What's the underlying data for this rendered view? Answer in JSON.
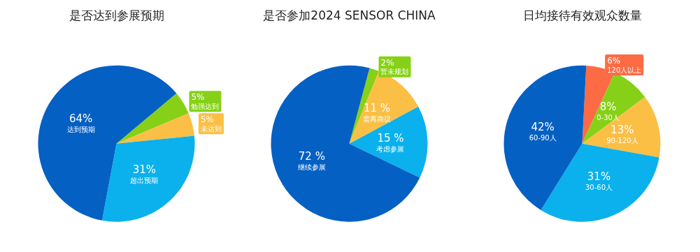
{
  "chart_data": [
    {
      "type": "pie",
      "title": "是否达到参展预期",
      "categories": [
        "勉强达到",
        "未达到",
        "超出预期",
        "达到预期"
      ],
      "values": [
        5,
        5,
        31,
        64
      ],
      "colors": [
        "#86d117",
        "#fbbf45",
        "#0ab1ec",
        "#0560c4"
      ],
      "value_labels": [
        "5%",
        "5%",
        "31%",
        "64%"
      ],
      "legend": false
    },
    {
      "type": "pie",
      "title": "是否参加2024 SENSOR CHINA",
      "categories": [
        "暂未规划",
        "需再商议",
        "考虑参展",
        "继续参展"
      ],
      "values": [
        2,
        11,
        15,
        72
      ],
      "colors": [
        "#86d117",
        "#fbbf45",
        "#0ab1ec",
        "#0560c4"
      ],
      "value_labels": [
        "2%",
        "11 %",
        "15 %",
        "72 %"
      ],
      "legend": false
    },
    {
      "type": "pie",
      "title": "日均接待有效观众数量",
      "categories": [
        "120人以上",
        "0-30人",
        "90-120人",
        "30-60人",
        "60-90人"
      ],
      "values": [
        6,
        8,
        13,
        31,
        42
      ],
      "colors": [
        "#fd6b45",
        "#86d117",
        "#fbbf45",
        "#0ab1ec",
        "#0560c4"
      ],
      "value_labels": [
        "6%",
        "8%",
        "13%",
        "31%",
        "42%"
      ],
      "legend": false
    }
  ]
}
